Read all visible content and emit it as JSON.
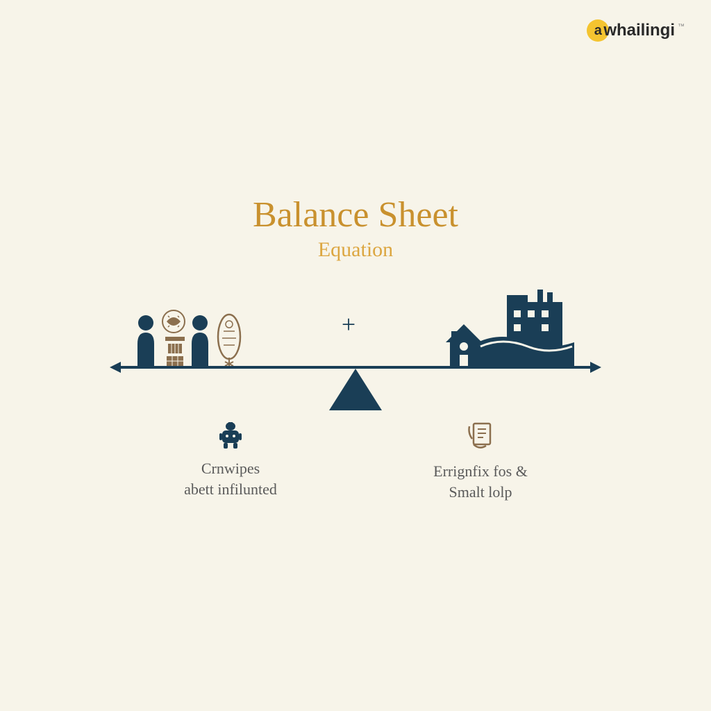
{
  "logo": {
    "initial": "a",
    "text": "whailingi",
    "tm": "™"
  },
  "title": "Balance Sheet",
  "subtitle": "Equation",
  "plus": "+",
  "left_label": "Crnwipes\nabett infilunted",
  "right_label": "Errignfix fos &\nSmalt lolp",
  "colors": {
    "background": "#f7f4e9",
    "title": "#c9912e",
    "subtitle": "#dca640",
    "dark_blue": "#1a3e56",
    "brown": "#8b6f4e",
    "text_gray": "#5a5a5a",
    "logo_yellow": "#f4c430"
  }
}
